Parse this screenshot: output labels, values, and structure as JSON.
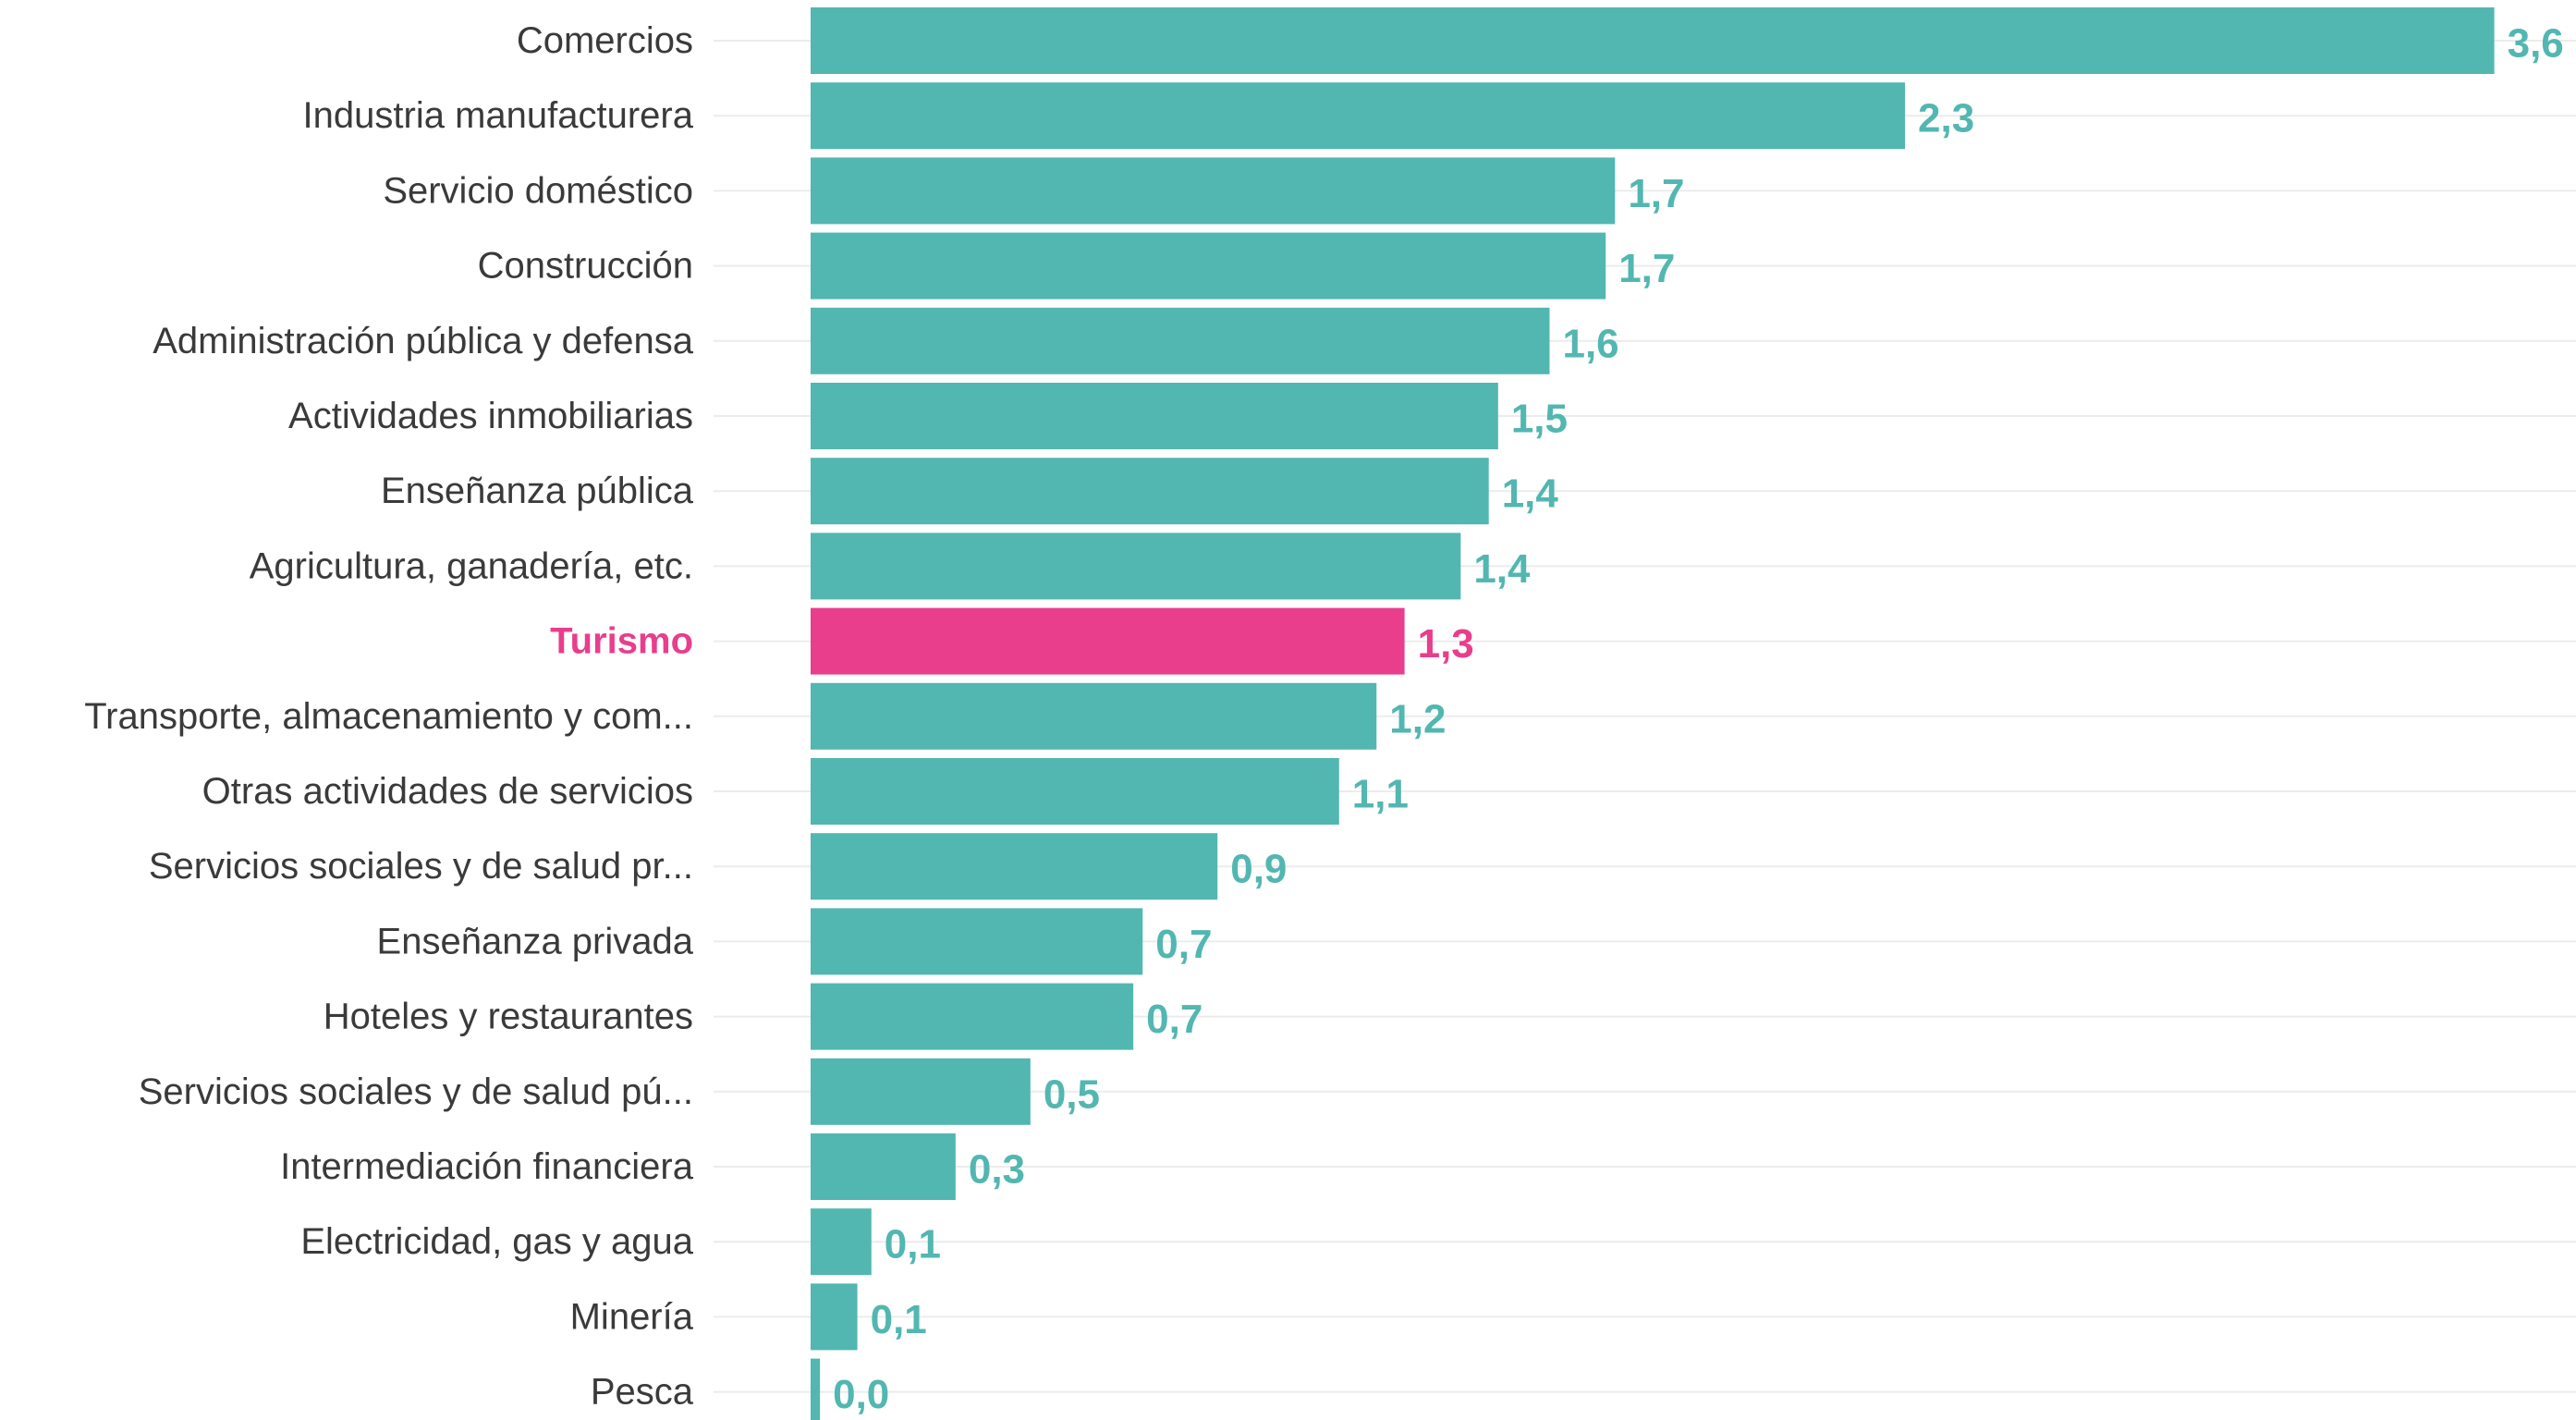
{
  "chart_data": {
    "type": "bar",
    "orientation": "horizontal",
    "categories": [
      "Comercios",
      "Industria manufacturera",
      "Servicio doméstico",
      "Construcción",
      "Administración pública y defensa",
      "Actividades inmobiliarias",
      "Enseñanza pública",
      "Agricultura, ganadería, etc.",
      "Turismo",
      "Transporte, almacenamiento y com...",
      "Otras actividades de servicios",
      "Servicios sociales y de salud pr...",
      "Enseñanza privada",
      "Hoteles y restaurantes",
      "Servicios sociales y de salud pú...",
      "Intermediación financiera",
      "Electricidad, gas y agua",
      "Minería",
      "Pesca"
    ],
    "values": [
      3.6,
      2.34,
      1.72,
      1.7,
      1.58,
      1.47,
      1.45,
      1.39,
      1.27,
      1.21,
      1.13,
      0.87,
      0.71,
      0.69,
      0.47,
      0.31,
      0.13,
      0.1,
      0.02
    ],
    "value_labels": [
      "3,6",
      "2,3",
      "1,7",
      "1,7",
      "1,6",
      "1,5",
      "1,4",
      "1,4",
      "1,3",
      "1,2",
      "1,1",
      "0,9",
      "0,7",
      "0,7",
      "0,5",
      "0,3",
      "0,1",
      "0,1",
      "0,0"
    ],
    "highlight_category": "Turismo",
    "colors": {
      "bar": "#52b7b0",
      "highlight": "#e83e8c",
      "value_text": "#52b7b0",
      "highlight_text": "#e83e8c",
      "label_text": "#3a3a3a",
      "gridline": "#ececec"
    },
    "grid": true,
    "legend": "none",
    "title": "",
    "xlabel": "",
    "ylabel": ""
  }
}
